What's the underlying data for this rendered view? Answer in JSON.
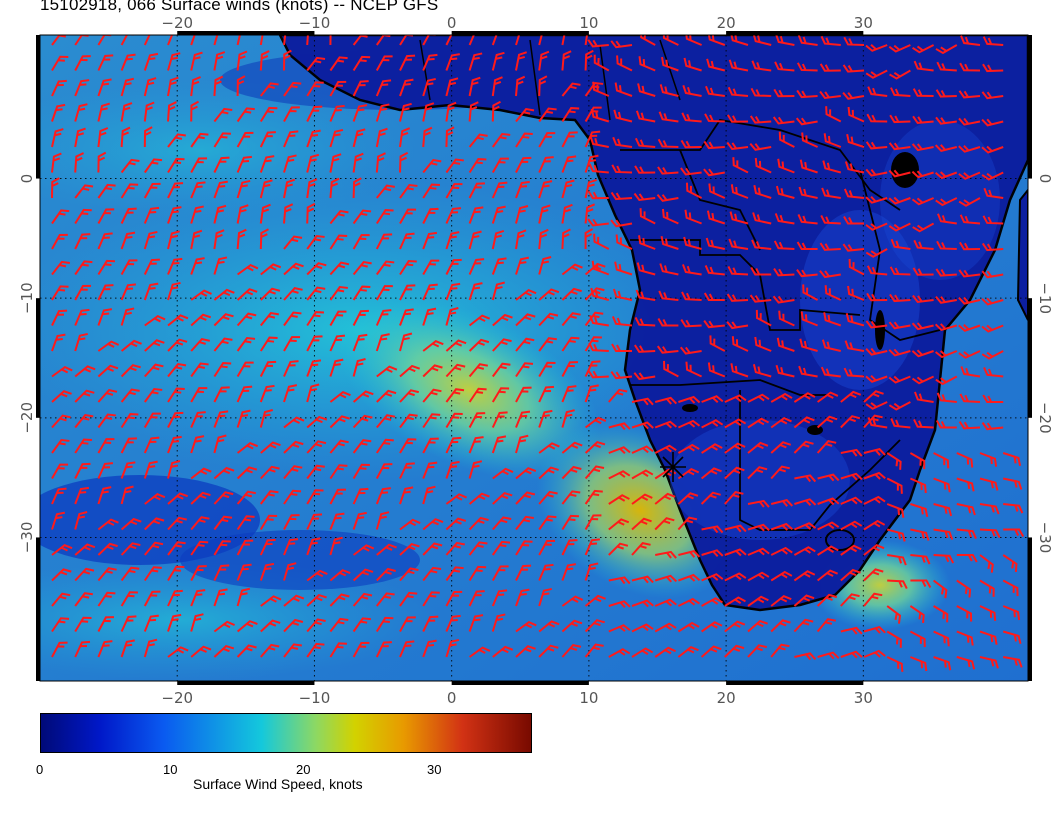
{
  "title": "15102918, 066 Surface winds (knots) -- NCEP GFS",
  "map": {
    "lon_ticks": [
      "−20",
      "−10",
      "0",
      "10",
      "20",
      "30"
    ],
    "lat_ticks": [
      "0",
      "−10",
      "−20",
      "−30"
    ],
    "lon_range": [
      -30,
      42
    ],
    "lat_range": [
      12,
      -42
    ],
    "marker": "cross-star-icon",
    "colors": {
      "wind_barb": "#ff1a1a",
      "coastline": "#000000"
    }
  },
  "colorbar": {
    "label": "Surface Wind Speed, knots",
    "ticks": [
      "0",
      "10",
      "20",
      "30"
    ],
    "range": [
      0,
      37
    ],
    "colors": [
      "#000a78",
      "#0018c8",
      "#0a5af0",
      "#14c8dc",
      "#8cd864",
      "#d2d200",
      "#e89a00",
      "#d23214",
      "#780a00"
    ]
  }
}
